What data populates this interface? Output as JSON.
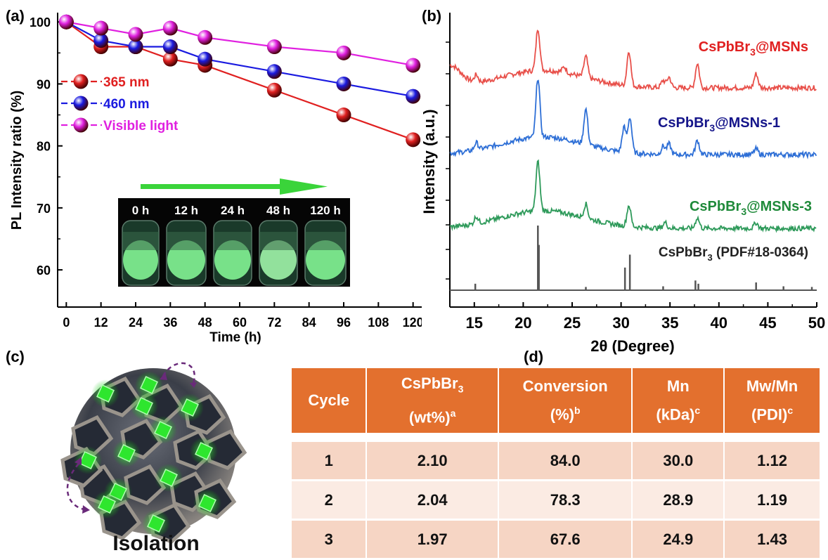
{
  "panel_labels": {
    "a": "(a)",
    "b": "(b)",
    "c": "(c)",
    "d": "(d)"
  },
  "colors": {
    "red": "#e02020",
    "blue": "#1a1ae0",
    "magenta": "#e020e0",
    "arrow_green": "#3ad43a",
    "xrd_red": "#e8504a",
    "xrd_blue": "#2e6fd6",
    "xrd_green": "#2e9a5a",
    "xrd_ref": "#555555",
    "table_header": "#e3702e"
  },
  "panel_a": {
    "photo": {
      "labels": [
        "0 h",
        "12 h",
        "24 h",
        "48 h",
        "120 h"
      ]
    }
  },
  "panel_b": {
    "labels": {
      "msns": {
        "main": "CsPbBr",
        "sub": "3",
        "rest": "@MSNs"
      },
      "msns1": {
        "main": "CsPbBr",
        "sub": "3",
        "rest": "@MSNs-1"
      },
      "msns3": {
        "main": "CsPbBr",
        "sub": "3",
        "rest": "@MSNs-3"
      },
      "ref": {
        "main": "CsPbBr",
        "sub": "3",
        "rest": " (PDF#18-0364)"
      }
    }
  },
  "panel_c": {
    "caption": "Isolation"
  },
  "panel_d": {
    "headers": [
      {
        "line1": "Cycle",
        "line2": "",
        "sup": ""
      },
      {
        "line1": "CsPbBr",
        "line1_sub": "3",
        "line2": "(wt%)",
        "sup": "a"
      },
      {
        "line1": "Conversion",
        "line2": "(%)",
        "sup": "b"
      },
      {
        "line1": "Mn",
        "line2": "(kDa)",
        "sup": "c"
      },
      {
        "line1": "Mw/Mn",
        "line2": "(PDI)",
        "sup": "c"
      }
    ],
    "rows": [
      [
        "1",
        "2.10",
        "84.0",
        "30.0",
        "1.12"
      ],
      [
        "2",
        "2.04",
        "78.3",
        "28.9",
        "1.19"
      ],
      [
        "3",
        "1.97",
        "67.6",
        "24.9",
        "1.43"
      ]
    ]
  },
  "chart_data": [
    {
      "type": "line",
      "title": "",
      "xlabel": "Time (h)",
      "ylabel": "PL Intensity ratio (%)",
      "xlim": [
        -3,
        123
      ],
      "ylim": [
        54,
        101.5
      ],
      "xticks": [
        0,
        12,
        24,
        36,
        48,
        60,
        72,
        84,
        96,
        108,
        120
      ],
      "yticks": [
        60,
        70,
        80,
        90,
        100
      ],
      "legend_position": "left",
      "series": [
        {
          "name": "365 nm",
          "color": "#e02020",
          "x": [
            0,
            12,
            24,
            36,
            48,
            72,
            96,
            120
          ],
          "y": [
            100,
            96,
            96,
            94,
            93,
            89,
            85,
            81
          ]
        },
        {
          "name": "460 nm",
          "color": "#1a1ae0",
          "x": [
            0,
            12,
            24,
            36,
            48,
            72,
            96,
            120
          ],
          "y": [
            100,
            97,
            96,
            96,
            94,
            92,
            90,
            88
          ]
        },
        {
          "name": "Visible light",
          "color": "#e020e0",
          "x": [
            0,
            12,
            24,
            36,
            48,
            72,
            96,
            120
          ],
          "y": [
            100,
            99,
            98,
            99,
            97.5,
            96,
            95,
            93
          ]
        }
      ]
    },
    {
      "type": "line",
      "title": "",
      "xlabel": "2θ (Degree)",
      "ylabel": "Intensity (a.u.)",
      "xlim": [
        12.5,
        50
      ],
      "xticks": [
        15,
        20,
        25,
        30,
        35,
        40,
        45,
        50
      ],
      "series": [
        {
          "name": "CsPbBr3@MSNs",
          "color": "#e8504a",
          "offset": 3.0,
          "peaks": [
            [
              15.2,
              0.1
            ],
            [
              21.5,
              0.6
            ],
            [
              24.2,
              0.08
            ],
            [
              26.4,
              0.3
            ],
            [
              30.8,
              0.5
            ],
            [
              34.3,
              0.1
            ],
            [
              34.9,
              0.15
            ],
            [
              37.8,
              0.35
            ],
            [
              43.8,
              0.2
            ]
          ]
        },
        {
          "name": "CsPbBr3@MSNs-1",
          "color": "#2e6fd6",
          "offset": 2.0,
          "peaks": [
            [
              15.2,
              0.1
            ],
            [
              21.5,
              0.85
            ],
            [
              26.4,
              0.5
            ],
            [
              30.3,
              0.35
            ],
            [
              30.9,
              0.5
            ],
            [
              34.3,
              0.12
            ],
            [
              34.9,
              0.15
            ],
            [
              37.8,
              0.2
            ],
            [
              43.8,
              0.08
            ]
          ]
        },
        {
          "name": "CsPbBr3@MSNs-3",
          "color": "#2e9a5a",
          "offset": 1.0,
          "peaks": [
            [
              15.2,
              0.1
            ],
            [
              21.5,
              0.7
            ],
            [
              26.4,
              0.2
            ],
            [
              30.8,
              0.3
            ],
            [
              34.5,
              0.08
            ],
            [
              37.8,
              0.15
            ],
            [
              43.8,
              0.08
            ]
          ]
        },
        {
          "name": "CsPbBr3 (PDF#18-0364)",
          "color": "#555555",
          "type": "stick",
          "offset": 0,
          "sticks": [
            [
              15.1,
              0.1
            ],
            [
              21.5,
              1.0
            ],
            [
              21.6,
              0.7
            ],
            [
              26.4,
              0.05
            ],
            [
              30.4,
              0.35
            ],
            [
              30.9,
              0.55
            ],
            [
              34.3,
              0.06
            ],
            [
              37.6,
              0.15
            ],
            [
              37.9,
              0.1
            ],
            [
              43.8,
              0.12
            ],
            [
              46.6,
              0.06
            ],
            [
              49.5,
              0.05
            ]
          ]
        }
      ]
    }
  ]
}
